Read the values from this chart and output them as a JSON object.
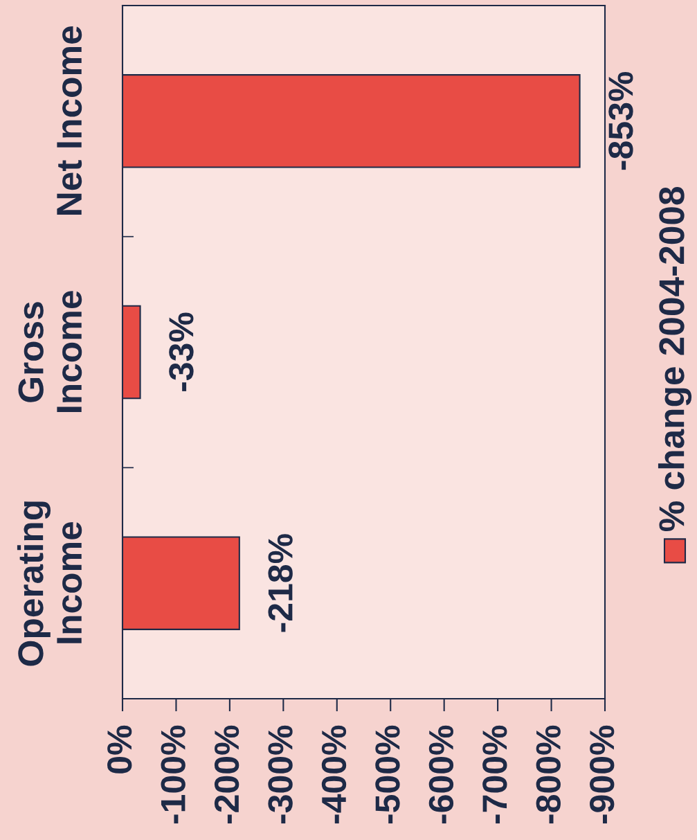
{
  "chart_data": {
    "type": "bar",
    "orientation": "horizontal",
    "categories": [
      "Net Income",
      "Gross\nIncome",
      "Operating\nIncome"
    ],
    "series": [
      {
        "name": "% change 2004-2008",
        "color": "#e84c45",
        "values": [
          -853,
          -33,
          -218
        ],
        "value_labels": [
          "-853%",
          "-33%",
          "-218%"
        ]
      }
    ],
    "xlim": [
      0,
      -900
    ],
    "xticks": [
      {
        "value": 0,
        "label": "0%"
      },
      {
        "value": -100,
        "label": "-100%"
      },
      {
        "value": -200,
        "label": "-200%"
      },
      {
        "value": -300,
        "label": "-300%"
      },
      {
        "value": -400,
        "label": "-400%"
      },
      {
        "value": -500,
        "label": "-500%"
      },
      {
        "value": -600,
        "label": "-600%"
      },
      {
        "value": -700,
        "label": "-700%"
      },
      {
        "value": -800,
        "label": "-800%"
      },
      {
        "value": -900,
        "label": "-900%"
      }
    ],
    "legend": "right"
  }
}
